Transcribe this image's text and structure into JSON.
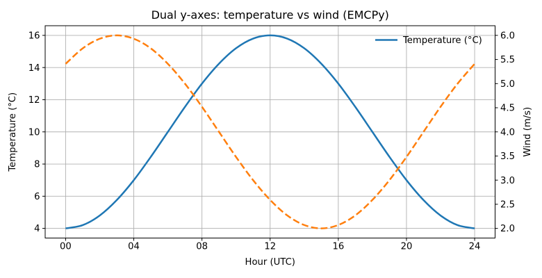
{
  "chart_data": {
    "type": "line",
    "title": "Dual y-axes: temperature vs wind (EMCPy)",
    "xlabel": "Hour (UTC)",
    "grid": true,
    "grid_color": "#b0b0b0",
    "x": [
      0,
      1,
      2,
      3,
      4,
      5,
      6,
      7,
      8,
      9,
      10,
      11,
      12,
      13,
      14,
      15,
      16,
      17,
      18,
      19,
      20,
      21,
      22,
      23,
      24
    ],
    "xlim": [
      -1.2,
      25.2
    ],
    "x_ticks": [
      0,
      4,
      8,
      12,
      16,
      20,
      24
    ],
    "x_tick_labels": [
      "00",
      "04",
      "08",
      "12",
      "16",
      "20",
      "24"
    ],
    "axes": {
      "left": {
        "label": "Temperature (°C)",
        "lim": [
          3.4,
          16.6
        ],
        "ticks": [
          4,
          6,
          8,
          10,
          12,
          14,
          16
        ],
        "tick_labels": [
          "4",
          "6",
          "8",
          "10",
          "12",
          "14",
          "16"
        ]
      },
      "right": {
        "label": "Wind (m/s)",
        "lim": [
          1.8,
          6.2
        ],
        "ticks": [
          2.0,
          2.5,
          3.0,
          3.5,
          4.0,
          4.5,
          5.0,
          5.5,
          6.0
        ],
        "tick_labels": [
          "2.0",
          "2.5",
          "3.0",
          "3.5",
          "4.0",
          "4.5",
          "5.0",
          "5.5",
          "6.0"
        ]
      }
    },
    "series": [
      {
        "name": "Temperature (°C)",
        "axis": "left",
        "color": "#1f77b4",
        "style": "solid",
        "values": [
          4.0,
          4.2,
          4.8,
          5.76,
          7.0,
          8.45,
          10.0,
          11.55,
          13.0,
          14.24,
          15.2,
          15.8,
          16.0,
          15.8,
          15.2,
          14.24,
          13.0,
          11.55,
          10.0,
          8.45,
          7.0,
          5.76,
          4.8,
          4.2,
          4.0
        ]
      },
      {
        "name": "Wind (m/s)",
        "axis": "right",
        "color": "#ff7f0e",
        "style": "dashed",
        "values": [
          5.41,
          5.73,
          5.93,
          6.0,
          5.93,
          5.73,
          5.41,
          5.0,
          4.52,
          4.0,
          3.48,
          3.0,
          2.59,
          2.27,
          2.07,
          2.0,
          2.07,
          2.27,
          2.59,
          3.0,
          3.48,
          4.0,
          4.52,
          5.0,
          5.41
        ]
      }
    ],
    "legend": {
      "position": "upper right",
      "entries": [
        "Temperature (°C)"
      ]
    }
  }
}
